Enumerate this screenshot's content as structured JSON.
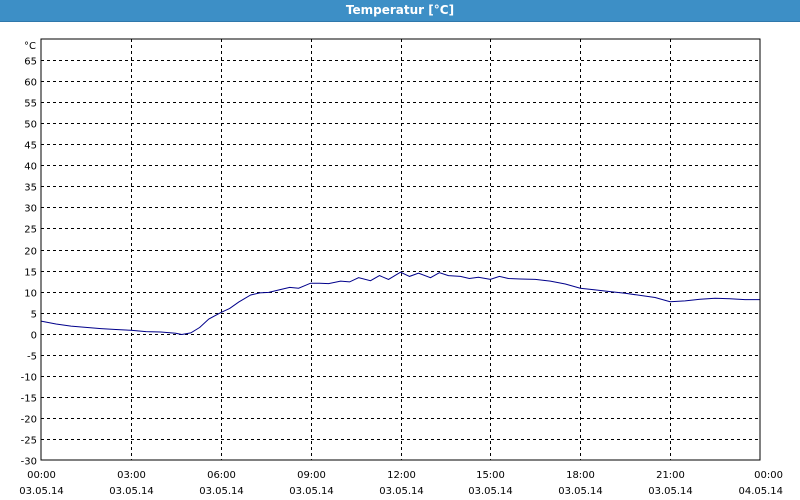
{
  "window": {
    "title": "Temperatur [°C]"
  },
  "colors": {
    "title_bar": "#3d8fc6",
    "line": "#00008b",
    "grid": "#000000"
  },
  "chart_data": {
    "type": "line",
    "title": "Temperatur [°C]",
    "ylabel": "°C",
    "ylim": [
      -30,
      70
    ],
    "yticks": [
      -30,
      -25,
      -20,
      -15,
      -10,
      -5,
      0,
      5,
      10,
      15,
      20,
      25,
      30,
      35,
      40,
      45,
      50,
      55,
      60,
      65
    ],
    "grid": true,
    "xrange": [
      0,
      24
    ],
    "xticks": [
      {
        "time": "00:00",
        "date": "03.05.14",
        "hour": 0
      },
      {
        "time": "03:00",
        "date": "03.05.14",
        "hour": 3
      },
      {
        "time": "06:00",
        "date": "03.05.14",
        "hour": 6
      },
      {
        "time": "09:00",
        "date": "03.05.14",
        "hour": 9
      },
      {
        "time": "12:00",
        "date": "03.05.14",
        "hour": 12
      },
      {
        "time": "15:00",
        "date": "03.05.14",
        "hour": 15
      },
      {
        "time": "18:00",
        "date": "03.05.14",
        "hour": 18
      },
      {
        "time": "21:00",
        "date": "03.05.14",
        "hour": 21
      },
      {
        "time": "00:00",
        "date": "04.05.14",
        "hour": 24
      }
    ],
    "series": [
      {
        "x": [
          0,
          0.5,
          1,
          1.5,
          2,
          2.5,
          3,
          3.5,
          4,
          4.5,
          4.7,
          5,
          5.3,
          5.6,
          6,
          6.3,
          6.6,
          7,
          7.3,
          7.6,
          8,
          8.3,
          8.6,
          9,
          9.3,
          9.6,
          10,
          10.3,
          10.6,
          11,
          11.3,
          11.6,
          12,
          12.3,
          12.6,
          13,
          13.3,
          13.6,
          14,
          14.3,
          14.6,
          15,
          15.3,
          15.6,
          16,
          16.5,
          17,
          17.5,
          18,
          18.5,
          19,
          19.5,
          20,
          20.5,
          21,
          21.5,
          22,
          22.5,
          23,
          23.5,
          24
        ],
        "y": [
          3,
          2.3,
          1.8,
          1.5,
          1.2,
          1,
          0.8,
          0.5,
          0.4,
          0.1,
          -0.2,
          0.2,
          1.5,
          3.5,
          5,
          6,
          7.5,
          9.2,
          9.7,
          9.8,
          10.5,
          11,
          10.8,
          12,
          12,
          11.9,
          12.5,
          12.3,
          13.3,
          12.6,
          13.8,
          12.9,
          14.6,
          13.6,
          14.4,
          13.3,
          14.5,
          13.8,
          13.6,
          13.1,
          13.4,
          12.9,
          13.6,
          13.1,
          13,
          12.9,
          12.5,
          11.8,
          10.8,
          10.4,
          10,
          9.6,
          9.1,
          8.6,
          7.6,
          7.8,
          8.2,
          8.4,
          8.3,
          8.1,
          8.1
        ]
      }
    ]
  }
}
